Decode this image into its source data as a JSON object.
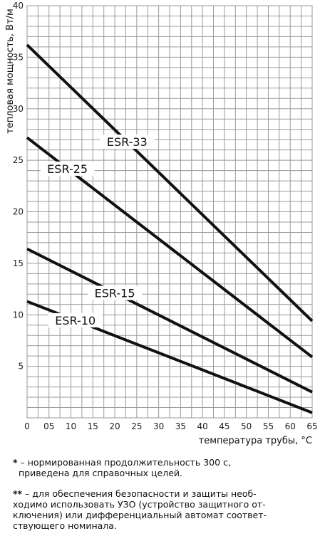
{
  "chart_data": {
    "type": "line",
    "xlabel": "температура трубы, °С",
    "ylabel": "тепловая мощность, Вт/м",
    "xlim": [
      0,
      65
    ],
    "ylim": [
      0,
      40
    ],
    "x_ticks": [
      "0",
      "05",
      "10",
      "15",
      "20",
      "25",
      "30",
      "35",
      "40",
      "45",
      "50",
      "55",
      "60",
      "65"
    ],
    "y_ticks": [
      "5",
      "10",
      "15",
      "20",
      "25",
      "30",
      "35",
      "40"
    ],
    "grid": true,
    "series": [
      {
        "name": "ESR-33",
        "x": [
          0,
          65
        ],
        "y": [
          36.2,
          9.4
        ]
      },
      {
        "name": "ESR-25",
        "x": [
          0,
          65
        ],
        "y": [
          27.2,
          5.9
        ]
      },
      {
        "name": "ESR-15",
        "x": [
          0,
          65
        ],
        "y": [
          16.4,
          2.5
        ]
      },
      {
        "name": "ESR-10",
        "x": [
          0,
          65
        ],
        "y": [
          11.3,
          0.5
        ]
      }
    ]
  },
  "notes": [
    {
      "mark": "*",
      "lines": [
        "– нормированная продолжительность 300 с,",
        "приведена для справочных целей."
      ]
    },
    {
      "mark": "**",
      "lines": [
        "– для обеспечения безопасности и защиты необ-",
        "ходимо использовать УЗО (устройство защитного от-",
        "ключения) или дифференциальный автомат соответ-",
        "ствующего номинала."
      ]
    }
  ]
}
